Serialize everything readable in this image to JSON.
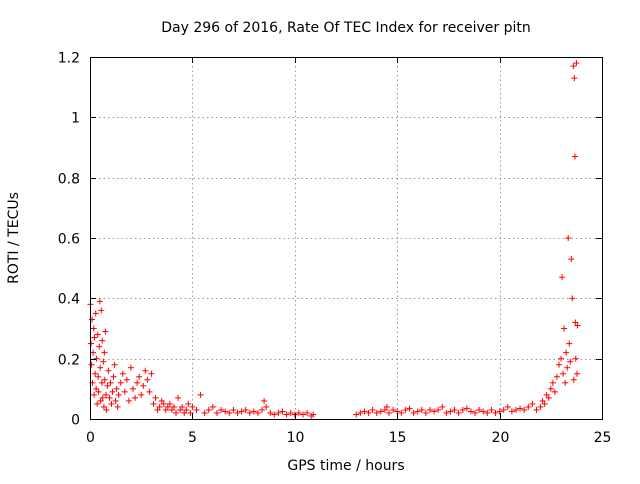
{
  "chart_data": {
    "type": "scatter",
    "title": "Day 296 of 2016, Rate Of TEC Index for receiver pitn",
    "xlabel": "GPS time / hours",
    "ylabel": "ROTI / TECUs",
    "xlim": [
      0,
      25
    ],
    "ylim": [
      0,
      1.2
    ],
    "xticks": [
      0,
      5,
      10,
      15,
      20,
      25
    ],
    "yticks": [
      0,
      0.2,
      0.4,
      0.6,
      0.8,
      1,
      1.2
    ],
    "grid": true,
    "legend": "none",
    "marker": "+",
    "color": "#ff0000",
    "series": [
      {
        "x": [
          0.02,
          0.05,
          0.08,
          0.1,
          0.12,
          0.15,
          0.18,
          0.2,
          0.22,
          0.25,
          0.28,
          0.3,
          0.32,
          0.35,
          0.38,
          0.4,
          0.42,
          0.45,
          0.48,
          0.5,
          0.52,
          0.55,
          0.58,
          0.6,
          0.62,
          0.65,
          0.68,
          0.7,
          0.72,
          0.75,
          0.78,
          0.8,
          0.85,
          0.9,
          0.95,
          1.0,
          1.05,
          1.1,
          1.15,
          1.2,
          1.25,
          1.3,
          1.35,
          1.4,
          1.5,
          1.6,
          1.7,
          1.8,
          1.9,
          2.0,
          2.1,
          2.2,
          2.3,
          2.4,
          2.5,
          2.6,
          2.7,
          2.8,
          2.9,
          3.0,
          3.1,
          3.2,
          3.3,
          3.4,
          3.5,
          3.6,
          3.7,
          3.8,
          3.9,
          4.0,
          4.1,
          4.2,
          4.3,
          4.4,
          4.5,
          4.6,
          4.7,
          4.8,
          4.9,
          5.0,
          5.2,
          5.4,
          5.6,
          5.8,
          6.0,
          6.2,
          6.4,
          6.6,
          6.8,
          7.0,
          7.2,
          7.4,
          7.6,
          7.8,
          8.0,
          8.2,
          8.4,
          8.5,
          8.6,
          8.8,
          9.0,
          9.2,
          9.4,
          9.6,
          9.8,
          10.0,
          10.2,
          10.4,
          10.6,
          10.8,
          10.9
        ],
        "y": [
          0.38,
          0.25,
          0.18,
          0.33,
          0.12,
          0.22,
          0.3,
          0.08,
          0.27,
          0.15,
          0.35,
          0.1,
          0.2,
          0.05,
          0.28,
          0.14,
          0.09,
          0.24,
          0.39,
          0.17,
          0.06,
          0.36,
          0.12,
          0.26,
          0.07,
          0.19,
          0.04,
          0.22,
          0.13,
          0.29,
          0.08,
          0.03,
          0.11,
          0.16,
          0.07,
          0.12,
          0.05,
          0.09,
          0.14,
          0.18,
          0.06,
          0.1,
          0.04,
          0.08,
          0.12,
          0.15,
          0.09,
          0.13,
          0.06,
          0.17,
          0.1,
          0.07,
          0.12,
          0.14,
          0.08,
          0.11,
          0.16,
          0.13,
          0.09,
          0.15,
          0.05,
          0.07,
          0.03,
          0.04,
          0.06,
          0.05,
          0.03,
          0.04,
          0.05,
          0.03,
          0.04,
          0.02,
          0.07,
          0.03,
          0.04,
          0.02,
          0.03,
          0.05,
          0.02,
          0.04,
          0.03,
          0.08,
          0.02,
          0.03,
          0.04,
          0.02,
          0.03,
          0.025,
          0.02,
          0.03,
          0.02,
          0.025,
          0.03,
          0.02,
          0.025,
          0.02,
          0.03,
          0.06,
          0.04,
          0.02,
          0.015,
          0.02,
          0.025,
          0.015,
          0.02,
          0.015,
          0.02,
          0.015,
          0.02,
          0.01,
          0.015
        ]
      },
      {
        "x": [
          13.0,
          13.2,
          13.4,
          13.6,
          13.8,
          14.0,
          14.2,
          14.4,
          14.5,
          14.6,
          14.8,
          15.0,
          15.2,
          15.4,
          15.6,
          15.8,
          16.0,
          16.2,
          16.4,
          16.6,
          16.8,
          17.0,
          17.2,
          17.4,
          17.6,
          17.8,
          18.0,
          18.2,
          18.4,
          18.6,
          18.8,
          19.0,
          19.2,
          19.4,
          19.6,
          19.8,
          20.0,
          20.2,
          20.4,
          20.6,
          20.8,
          21.0,
          21.2,
          21.4,
          21.6,
          21.8,
          22.0,
          22.1,
          22.2,
          22.3,
          22.4,
          22.5,
          22.6,
          22.7,
          22.8,
          22.9,
          23.0,
          23.05,
          23.1,
          23.15,
          23.2,
          23.25,
          23.3,
          23.35,
          23.4,
          23.45,
          23.5,
          23.55,
          23.6,
          23.62,
          23.65,
          23.68,
          23.7,
          23.72,
          23.75,
          23.78,
          23.8
        ],
        "y": [
          0.015,
          0.02,
          0.025,
          0.02,
          0.03,
          0.02,
          0.025,
          0.03,
          0.04,
          0.02,
          0.03,
          0.025,
          0.02,
          0.03,
          0.035,
          0.02,
          0.025,
          0.03,
          0.02,
          0.03,
          0.025,
          0.03,
          0.04,
          0.02,
          0.025,
          0.03,
          0.02,
          0.03,
          0.035,
          0.025,
          0.02,
          0.03,
          0.025,
          0.02,
          0.03,
          0.02,
          0.025,
          0.03,
          0.04,
          0.025,
          0.03,
          0.035,
          0.03,
          0.04,
          0.05,
          0.03,
          0.04,
          0.06,
          0.05,
          0.08,
          0.07,
          0.1,
          0.12,
          0.09,
          0.14,
          0.18,
          0.2,
          0.47,
          0.15,
          0.3,
          0.12,
          0.22,
          0.17,
          0.6,
          0.25,
          0.19,
          0.53,
          0.4,
          1.17,
          0.13,
          1.13,
          0.87,
          0.32,
          0.2,
          1.18,
          0.15,
          0.31
        ]
      }
    ]
  }
}
